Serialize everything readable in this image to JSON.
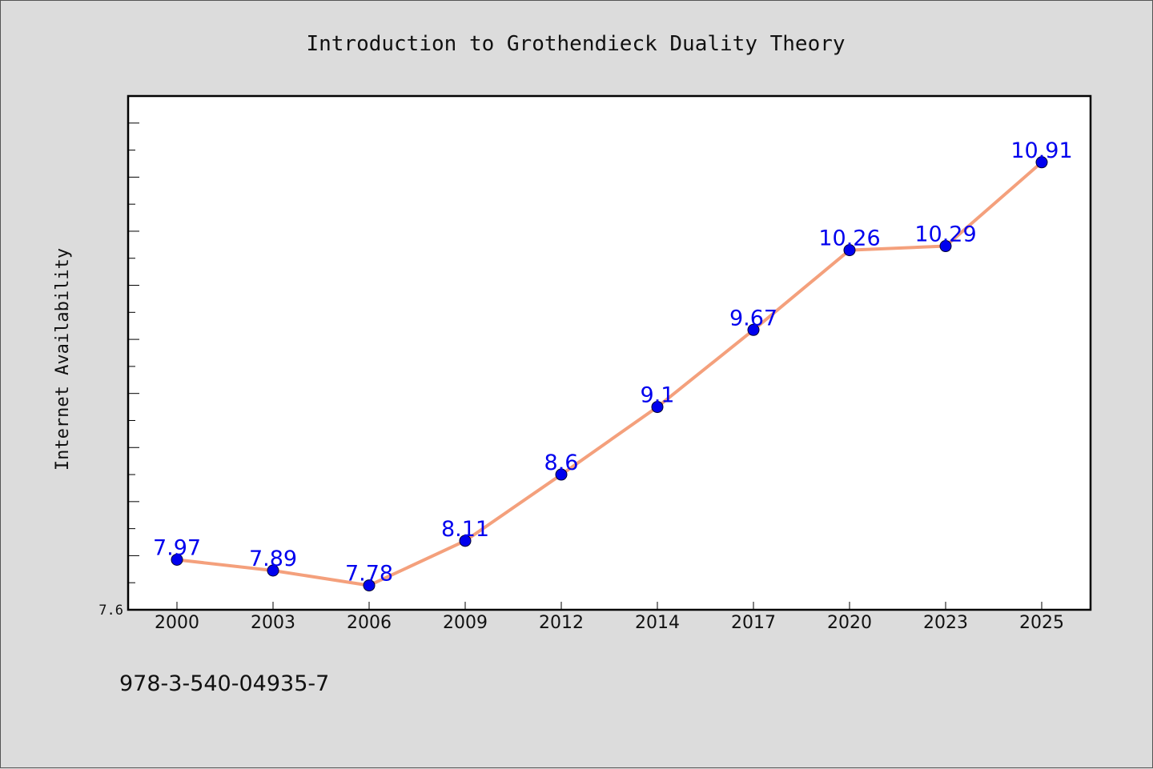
{
  "chart_data": {
    "type": "line",
    "title": "Introduction to Grothendieck Duality Theory",
    "xlabel": "",
    "ylabel": "Internet Availability",
    "categories": [
      "2000",
      "2003",
      "2006",
      "2009",
      "2012",
      "2014",
      "2017",
      "2020",
      "2023",
      "2025"
    ],
    "series": [
      {
        "values": [
          7.97,
          7.89,
          7.78,
          8.11,
          8.6,
          9.1,
          9.67,
          10.26,
          10.29,
          10.91
        ],
        "labels": [
          "7.97",
          "7.89",
          "7.78",
          "8.11",
          "8.6",
          "9.1",
          "9.67",
          "10.26",
          "10.29",
          "10.91"
        ]
      }
    ],
    "ylim": [
      7.6,
      11.4
    ],
    "yticks_labeled": [
      "7.6"
    ],
    "grid": false,
    "legend": "none",
    "footer": "978-3-540-04935-7",
    "colors": {
      "line": "#f4a07c",
      "marker": "#0000ee",
      "marker_edge": "#000033",
      "label": "#0000ee",
      "plot_bg": "#ffffff",
      "page_bg": "#dcdcdc",
      "axis": "#000000"
    }
  }
}
